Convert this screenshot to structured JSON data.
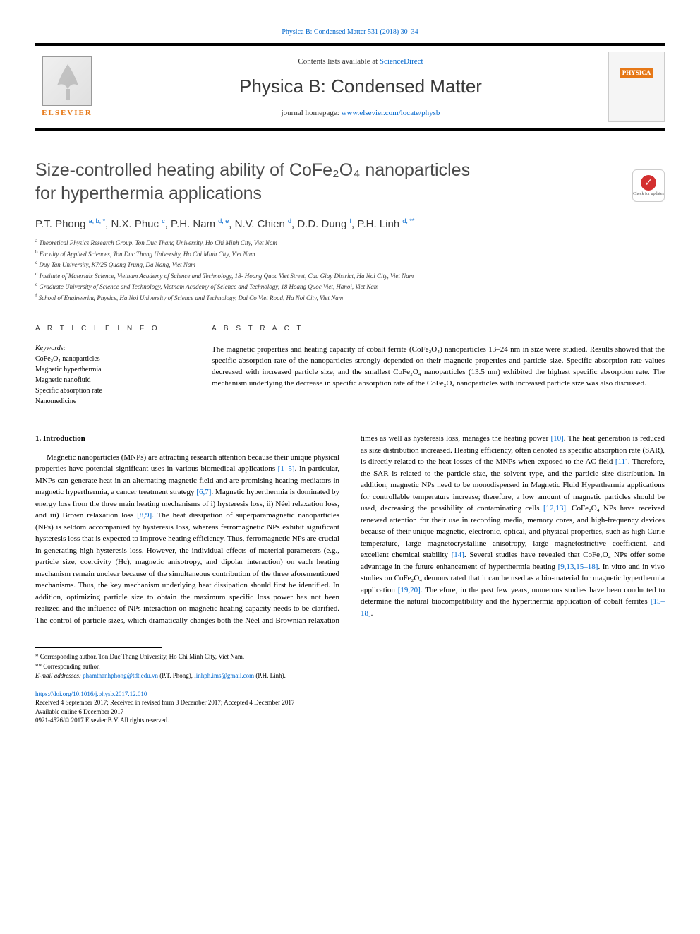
{
  "top_citation": {
    "prefix": "Physica B: Condensed Matter 531 (2018) 30–34",
    "link_text": "Physica B: Condensed Matter 531 (2018) 30–34"
  },
  "header": {
    "elsevier": "ELSEVIER",
    "contents_prefix": "Contents lists available at ",
    "contents_link": "ScienceDirect",
    "journal": "Physica B: Condensed Matter",
    "homepage_prefix": "journal homepage: ",
    "homepage_link": "www.elsevier.com/locate/physb",
    "cover_label": "PHYSICA"
  },
  "check_badge": {
    "icon": "✓",
    "text": "Check for updates"
  },
  "title_line1": "Size-controlled heating ability of CoFe₂O₄ nanoparticles",
  "title_line2": "for hyperthermia applications",
  "authors_html": "P.T. Phong <sup>a, b, *</sup>, N.X. Phuc <sup>c</sup>, P.H. Nam <sup>d, e</sup>, N.V. Chien <sup>d</sup>, D.D. Dung <sup>f</sup>, P.H. Linh <sup>d, **</sup>",
  "affiliations": [
    {
      "sup": "a",
      "text": "Theoretical Physics Research Group, Ton Duc Thang University, Ho Chi Minh City, Viet Nam"
    },
    {
      "sup": "b",
      "text": "Faculty of Applied Sciences, Ton Duc Thang University, Ho Chi Minh City, Viet Nam"
    },
    {
      "sup": "c",
      "text": "Duy Tan University, K7/25 Quang Trung, Da Nang, Viet Nam"
    },
    {
      "sup": "d",
      "text": "Institute of Materials Science, Vietnam Academy of Science and Technology, 18- Hoang Quoc Viet Street, Cau Giay District, Ha Noi City, Viet Nam"
    },
    {
      "sup": "e",
      "text": "Graduate University of Science and Technology, Vietnam Academy of Science and Technology, 18 Hoang Quoc Viet, Hanoi, Viet Nam"
    },
    {
      "sup": "f",
      "text": "School of Engineering Physics, Ha Noi University of Science and Technology, Dai Co Viet Road, Ha Noi City, Viet Nam"
    }
  ],
  "article_info": {
    "heading": "A R T I C L E  I N F O",
    "keywords_label": "Keywords:",
    "keywords": [
      "CoFe₂O₄ nanoparticles",
      "Magnetic hyperthermia",
      "Magnetic nanofluid",
      "Specific absorption rate",
      "Nanomedicine"
    ]
  },
  "abstract": {
    "heading": "A B S T R A C T",
    "text": "The magnetic properties and heating capacity of cobalt ferrite (CoFe₂O₄) nanoparticles 13–24 nm in size were studied. Results showed that the specific absorption rate of the nanoparticles strongly depended on their magnetic properties and particle size. Specific absorption rate values decreased with increased particle size, and the smallest CoFe₂O₄ nanoparticles (13.5 nm) exhibited the highest specific absorption rate. The mechanism underlying the decrease in specific absorption rate of the CoFe₂O₄ nanoparticles with increased particle size was also discussed."
  },
  "body": {
    "section_heading": "1.  Introduction",
    "para1_pre": "Magnetic nanoparticles (MNPs) are attracting research attention because their unique physical properties have potential significant uses in various biomedical applications ",
    "ref1": "[1–5]",
    "para1_mid1": ". In particular, MNPs can generate heat in an alternating magnetic field and are promising heating mediators in magnetic hyperthermia, a cancer treatment strategy ",
    "ref2": "[6,7]",
    "para1_mid2": ". Magnetic hyperthermia is dominated by energy loss from the three main heating mechanisms of i) hysteresis loss, ii) Néel relaxation loss, and iii) Brown relaxation loss ",
    "ref3": "[8,9]",
    "para1_post": ". The heat dissipation of superparamagnetic nanoparticles (NPs) is seldom accompanied by hysteresis loss, whereas ferromagnetic NPs exhibit significant hysteresis loss that is expected to improve heating efficiency. Thus, ferromagnetic NPs are crucial in generating high hysteresis loss. However, the individual effects of material parameters (e.g., particle size, coercivity (Hc), magnetic anisotropy, and dipolar interaction) on each heating mechanism remain unclear because of the simultaneous contribution of the three aforementioned mechanisms. Thus, the key mechanism underlying heat dissipation should first be identified. In addition, optimizing particle size to obtain the maximum specific loss power has not been realized and the influence of NPs interaction on magnetic heating capacity needs to be clarified. The control of particle sizes, which dramatically changes both ",
    "para2_pre": "the Néel and Brownian relaxation times as well as hysteresis loss, manages the heating power ",
    "ref4": "[10]",
    "para2_mid1": ". The heat generation is reduced as size distribution increased. Heating efficiency, often denoted as specific absorption rate (SAR), is directly related to the heat losses of the MNPs when exposed to the AC field ",
    "ref5": "[11]",
    "para2_mid2": ". Therefore, the SAR is related to the particle size, the solvent type, and the particle size distribution. In addition, magnetic NPs need to be monodispersed in Magnetic Fluid Hyperthermia applications for controllable temperature increase; therefore, a low amount of magnetic particles should be used, decreasing the possibility of contaminating cells ",
    "ref6": "[12,13]",
    "para2_mid3": ". CoFe₂O₄ NPs have received renewed attention for their use in recording media, memory cores, and high-frequency devices because of their unique magnetic, electronic, optical, and physical properties, such as high Curie temperature, large magnetocrystalline anisotropy, large magnetostrictive coefficient, and excellent chemical stability ",
    "ref7": "[14]",
    "para2_mid4": ". Several studies have revealed that CoFe₂O₄ NPs offer some advantage in the future enhancement of hyperthermia heating ",
    "ref8": "[9,13,15–18]",
    "para2_mid5": ". In vitro and in vivo studies on CoFe₂O₄ demonstrated that it can be used as a bio-material for magnetic hyperthermia application ",
    "ref9": "[19,20]",
    "para2_mid6": ". Therefore, in the past few years, numerous studies have been conducted to determine the natural biocompatibility and the hyperthermia application of cobalt ferrites ",
    "ref10": "[15–18]",
    "para2_post": "."
  },
  "footnotes": {
    "star1": "* Corresponding author. Ton Duc Thang University, Ho Chi Minh City, Viet Nam.",
    "star2": "** Corresponding author.",
    "email_label": "E-mail addresses: ",
    "email1": "phamthanhphong@tdt.edu.vn",
    "email1_name": " (P.T. Phong), ",
    "email2": "linhph.ims@gmail.com",
    "email2_name": " (P.H. Linh)."
  },
  "doi_block": {
    "doi": "https://doi.org/10.1016/j.physb.2017.12.010",
    "history": "Received 4 September 2017; Received in revised form 3 December 2017; Accepted 4 December 2017",
    "online": "Available online 6 December 2017",
    "copyright": "0921-4526/© 2017 Elsevier B.V. All rights reserved."
  },
  "colors": {
    "link": "#0066cc",
    "elsevier_orange": "#e67817",
    "text": "#000000",
    "title_gray": "#4a4a4a",
    "badge_red": "#d32f2f"
  },
  "typography": {
    "title_fontsize": 25,
    "journal_fontsize": 26,
    "body_fontsize": 11,
    "abstract_fontsize": 11,
    "authors_fontsize": 15,
    "affil_fontsize": 9,
    "footnote_fontsize": 9
  }
}
